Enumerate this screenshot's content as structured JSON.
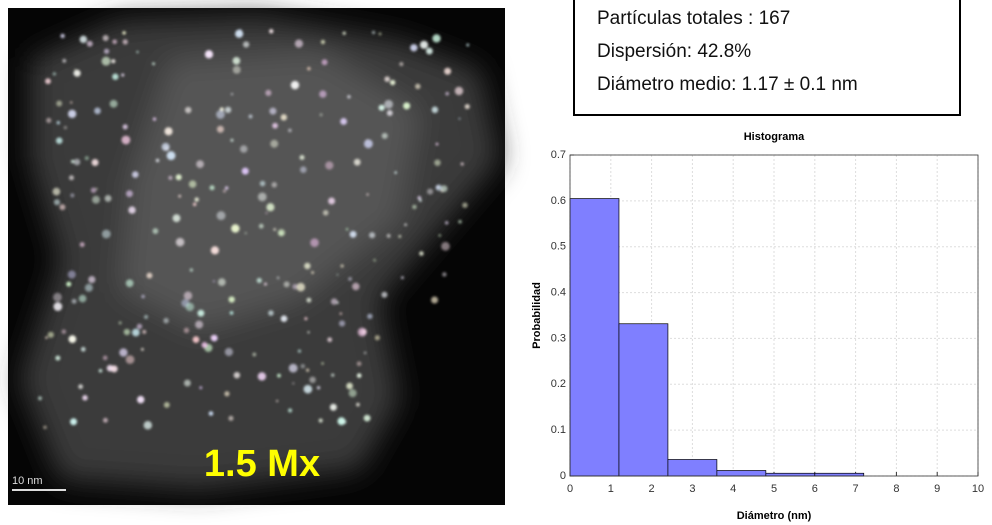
{
  "image": {
    "magnification": "1.5 Mx",
    "scale_bar": "10 nm"
  },
  "stats": {
    "lines": [
      "Partículas totales : 167",
      "Dispersión: 42.8%",
      "Diámetro medio: 1.17 ± 0.1 nm"
    ]
  },
  "chart_data": {
    "type": "histogram",
    "title": "Histograma",
    "x_label": "Diámetro (nm)",
    "y_label": "Probabilidad",
    "bins": [
      0,
      1.2,
      2.4,
      3.6,
      4.8,
      6.0,
      7.2
    ],
    "counts": [
      0.605,
      0.332,
      0.036,
      0.012,
      0.006,
      0.006
    ],
    "color": "#7f7fff",
    "xlim": [
      0,
      10
    ],
    "ylim": [
      0,
      0.7
    ],
    "xticks": [
      0,
      1,
      2,
      3,
      4,
      5,
      6,
      7,
      8,
      9,
      10
    ],
    "yticks": [
      0,
      0.1,
      0.2,
      0.3,
      0.4,
      0.5,
      0.6,
      0.7
    ],
    "grid": true
  }
}
